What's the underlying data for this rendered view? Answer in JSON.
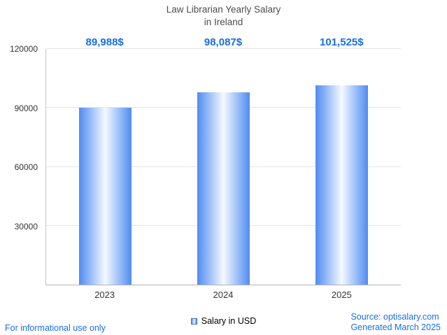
{
  "title_line1": "Law Librarian Yearly Salary",
  "title_line2": "in Ireland",
  "chart_data": {
    "type": "bar",
    "title": "Law Librarian Yearly Salary in Ireland",
    "categories": [
      "2023",
      "2024",
      "2025"
    ],
    "values": [
      89988,
      98087,
      101525
    ],
    "value_labels": [
      "89,988$",
      "98,087$",
      "101,525$"
    ],
    "xlabel": "",
    "ylabel": "",
    "ylim": [
      0,
      120000
    ],
    "yticks": [
      30000,
      60000,
      90000,
      120000
    ],
    "grid": "horizontal",
    "legend": {
      "label": "Salary in USD",
      "position": "bottom-center"
    }
  },
  "footer": {
    "left_note": "For informational use only",
    "source": "Source: optisalary.com",
    "generated": "Generated March 2025"
  },
  "colors": {
    "accent": "#1a6ee8",
    "bar_edge": "#4f8cf2",
    "bar_center": "#f5f9ff"
  }
}
